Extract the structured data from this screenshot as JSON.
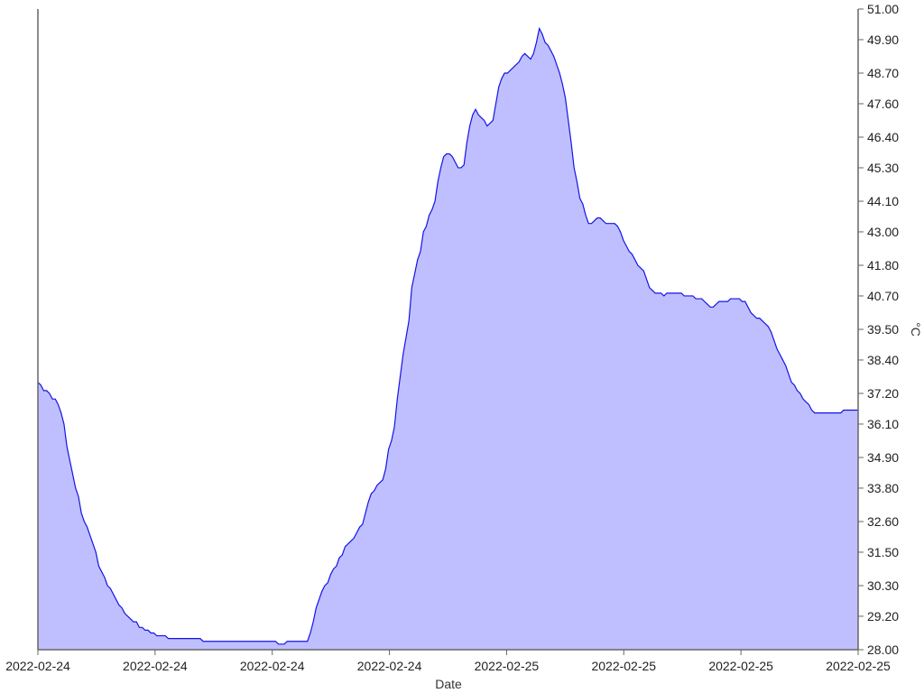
{
  "chart_data": {
    "type": "area",
    "xlabel": "Date",
    "ylabel": "°C",
    "x_tick_labels": [
      "2022-02-24",
      "2022-02-24",
      "2022-02-24",
      "2022-02-24",
      "2022-02-25",
      "2022-02-25",
      "2022-02-25",
      "2022-02-25"
    ],
    "y_ticks": [
      "28.00",
      "29.20",
      "30.30",
      "31.50",
      "32.60",
      "33.80",
      "34.90",
      "36.10",
      "37.20",
      "38.40",
      "39.50",
      "40.70",
      "41.80",
      "43.00",
      "44.10",
      "45.30",
      "46.40",
      "47.60",
      "48.70",
      "49.90",
      "51.00"
    ],
    "ylim": [
      28.0,
      51.0
    ],
    "grid": false,
    "colors": {
      "line": "#1414e6",
      "fill": "#bfbfff",
      "axis": "#666666"
    },
    "series": [
      {
        "values": [
          37.6,
          37.5,
          37.3,
          37.3,
          37.2,
          37.0,
          37.0,
          36.8,
          36.5,
          36.1,
          35.3,
          34.8,
          34.3,
          33.8,
          33.5,
          32.9,
          32.6,
          32.4,
          32.1,
          31.8,
          31.5,
          31.0,
          30.8,
          30.6,
          30.3,
          30.2,
          30.0,
          29.8,
          29.6,
          29.5,
          29.3,
          29.2,
          29.1,
          29.0,
          29.0,
          28.8,
          28.8,
          28.7,
          28.7,
          28.6,
          28.6,
          28.5,
          28.5,
          28.5,
          28.5,
          28.4,
          28.4,
          28.4,
          28.4,
          28.4,
          28.4,
          28.4,
          28.4,
          28.4,
          28.4,
          28.4,
          28.4,
          28.3,
          28.3,
          28.3,
          28.3,
          28.3,
          28.3,
          28.3,
          28.3,
          28.3,
          28.3,
          28.3,
          28.3,
          28.3,
          28.3,
          28.3,
          28.3,
          28.3,
          28.3,
          28.3,
          28.3,
          28.3,
          28.3,
          28.3,
          28.3,
          28.3,
          28.3,
          28.2,
          28.2,
          28.2,
          28.3,
          28.3,
          28.3,
          28.3,
          28.3,
          28.3,
          28.3,
          28.3,
          28.6,
          29.0,
          29.5,
          29.8,
          30.1,
          30.3,
          30.4,
          30.7,
          30.9,
          31.0,
          31.3,
          31.4,
          31.7,
          31.8,
          31.9,
          32.0,
          32.2,
          32.4,
          32.5,
          32.9,
          33.3,
          33.6,
          33.7,
          33.9,
          34.0,
          34.1,
          34.5,
          35.2,
          35.5,
          36.0,
          37.0,
          37.8,
          38.6,
          39.2,
          39.8,
          41.0,
          41.5,
          42.0,
          42.3,
          43.0,
          43.2,
          43.6,
          43.8,
          44.1,
          44.8,
          45.3,
          45.7,
          45.8,
          45.8,
          45.7,
          45.5,
          45.3,
          45.3,
          45.4,
          46.2,
          46.8,
          47.2,
          47.4,
          47.2,
          47.1,
          47.0,
          46.8,
          46.9,
          47.0,
          47.6,
          48.2,
          48.5,
          48.7,
          48.7,
          48.8,
          48.9,
          49.0,
          49.1,
          49.3,
          49.4,
          49.3,
          49.2,
          49.4,
          49.8,
          50.3,
          50.1,
          49.8,
          49.7,
          49.5,
          49.3,
          49.0,
          48.7,
          48.3,
          47.8,
          47.0,
          46.2,
          45.3,
          44.8,
          44.2,
          44.0,
          43.6,
          43.3,
          43.3,
          43.4,
          43.5,
          43.5,
          43.4,
          43.3,
          43.3,
          43.3,
          43.3,
          43.2,
          43.0,
          42.7,
          42.5,
          42.3,
          42.2,
          42.0,
          41.8,
          41.7,
          41.6,
          41.3,
          41.0,
          40.9,
          40.8,
          40.8,
          40.8,
          40.7,
          40.8,
          40.8,
          40.8,
          40.8,
          40.8,
          40.8,
          40.7,
          40.7,
          40.7,
          40.7,
          40.6,
          40.6,
          40.6,
          40.5,
          40.4,
          40.3,
          40.3,
          40.4,
          40.5,
          40.5,
          40.5,
          40.5,
          40.6,
          40.6,
          40.6,
          40.6,
          40.5,
          40.5,
          40.3,
          40.1,
          40.0,
          39.9,
          39.9,
          39.8,
          39.7,
          39.6,
          39.4,
          39.1,
          38.8,
          38.6,
          38.4,
          38.2,
          37.9,
          37.6,
          37.5,
          37.3,
          37.2,
          37.0,
          36.9,
          36.8,
          36.6,
          36.5,
          36.5,
          36.5,
          36.5,
          36.5,
          36.5,
          36.5,
          36.5,
          36.5,
          36.5,
          36.6,
          36.6,
          36.6,
          36.6,
          36.6,
          36.6
        ]
      }
    ]
  }
}
